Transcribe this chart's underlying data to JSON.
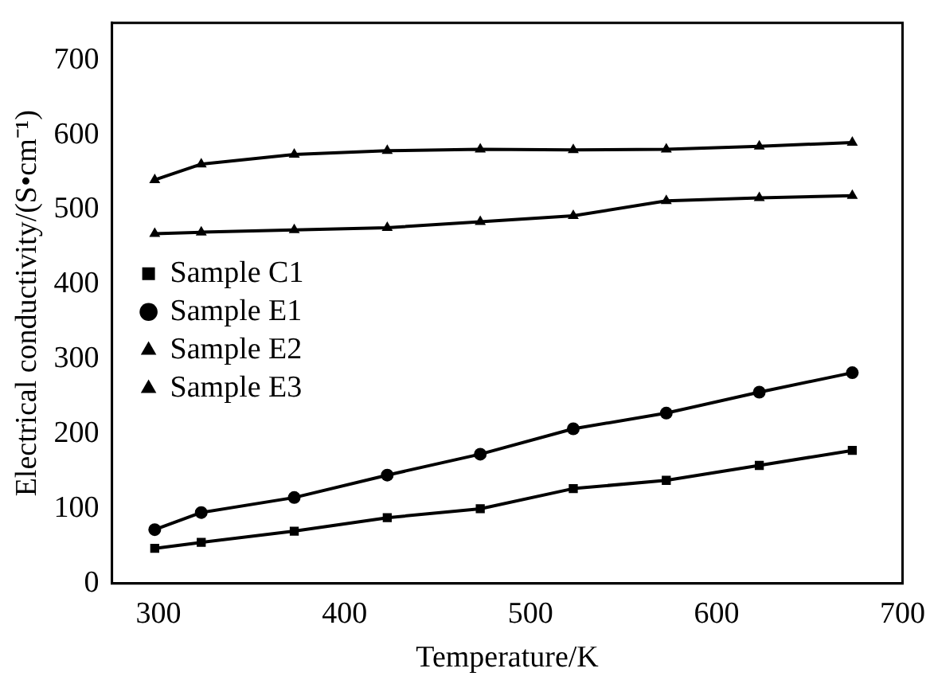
{
  "chart_data": {
    "type": "line",
    "xlabel": "Temperature/K",
    "ylabel": "Electrical conductivity/(S•cm⁻¹)",
    "x": [
      298,
      323,
      373,
      423,
      473,
      523,
      573,
      623,
      673
    ],
    "xlim": [
      275,
      700
    ],
    "xticks": [
      300,
      400,
      500,
      600,
      700
    ],
    "ylim": [
      0,
      750
    ],
    "yticks": [
      0,
      100,
      200,
      300,
      400,
      500,
      600,
      700
    ],
    "grid": false,
    "legend": "left",
    "line_style": "solid",
    "series": [
      {
        "name": "Sample C1",
        "color": "#000000",
        "marker": "square",
        "values": [
          47,
          55,
          70,
          88,
          100,
          127,
          138,
          158,
          178
        ]
      },
      {
        "name": "Sample E1",
        "color": "#000000",
        "marker": "circle",
        "values": [
          72,
          95,
          115,
          145,
          173,
          207,
          228,
          256,
          282
        ]
      },
      {
        "name": "Sample E2",
        "color": "#000000",
        "marker": "triangle",
        "values": [
          540,
          561,
          574,
          579,
          581,
          580,
          581,
          585,
          590
        ]
      },
      {
        "name": "Sample E3",
        "color": "#000000",
        "marker": "triangle",
        "values": [
          468,
          470,
          473,
          476,
          484,
          492,
          512,
          516,
          519
        ]
      }
    ]
  }
}
